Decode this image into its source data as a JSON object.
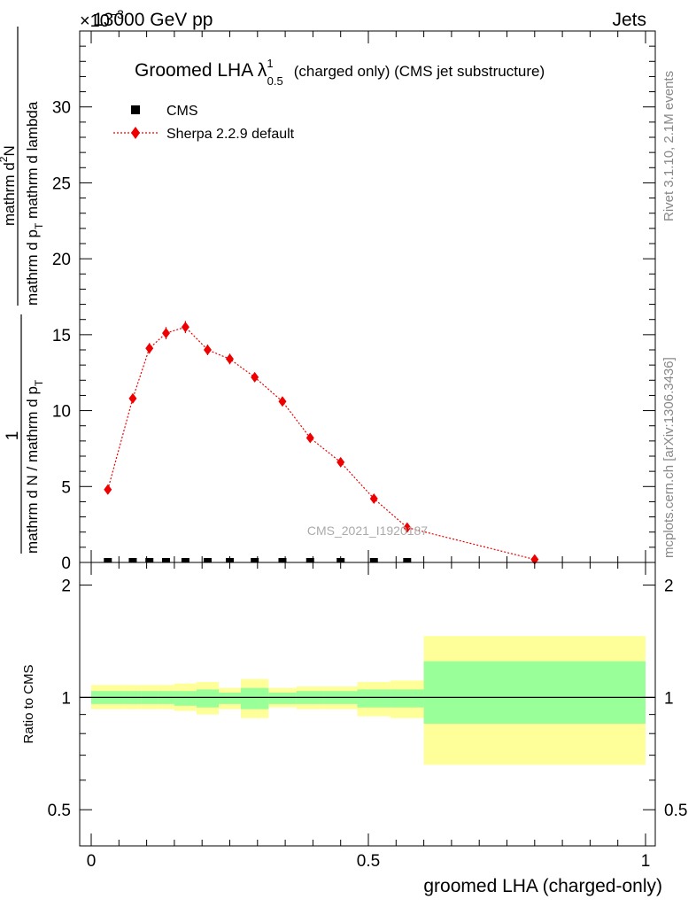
{
  "header": {
    "left": "13000 GeV pp",
    "right": "Jets"
  },
  "side": {
    "rivet": "Rivet 3.1.10,  2.1M events",
    "mcplots": "mcplots.cern.ch [arXiv:1306.3436]"
  },
  "watermark": "CMS_2021_I1920187",
  "colors": {
    "sherpa": "#ee0000",
    "band_inner": "#99ff99",
    "band_outer": "#ffff99",
    "data": "#000000"
  },
  "chart_data": [
    {
      "type": "scatter",
      "title": {
        "main": "Groomed LHA",
        "symbol": "λ",
        "sup": "1",
        "sub": "0.5",
        "suffix": "(charged only) (CMS jet substructure)"
      },
      "exponent_label": "×10",
      "exponent_sup": "−3",
      "ylabel": {
        "prefix": "1",
        "den1": "mathrm d N / mathrm d p",
        "den1_sub": "T",
        "den2": "mathrm d p",
        "den2_sub": "T",
        "num": "mathrm d",
        "num_sup": "2",
        "num_tail": "N",
        "den3": "mathrm d lambda"
      },
      "ylim": [
        0,
        35
      ],
      "yticks": [
        0,
        5,
        10,
        15,
        20,
        25,
        30
      ],
      "xlim": [
        0,
        1
      ],
      "legend": [
        {
          "label": "CMS",
          "marker": "square"
        },
        {
          "label": "Sherpa 2.2.9 default",
          "marker": "diamond-dotted-line"
        }
      ],
      "series": [
        {
          "name": "CMS",
          "x": [
            0.03,
            0.075,
            0.105,
            0.135,
            0.17,
            0.21,
            0.25,
            0.295,
            0.345,
            0.395,
            0.45,
            0.51,
            0.57
          ],
          "y": [
            0,
            0,
            0,
            0,
            0,
            0,
            0,
            0,
            0,
            0,
            0,
            0,
            0
          ]
        },
        {
          "name": "Sherpa 2.2.9 default",
          "x": [
            0.03,
            0.075,
            0.105,
            0.135,
            0.17,
            0.21,
            0.25,
            0.295,
            0.345,
            0.395,
            0.45,
            0.51,
            0.57,
            0.8
          ],
          "y": [
            4.8,
            10.8,
            14.1,
            15.1,
            15.5,
            14.0,
            13.4,
            12.2,
            10.6,
            8.2,
            6.6,
            4.2,
            2.3,
            0.2
          ],
          "yerr": [
            0.25,
            0.3,
            0.35,
            0.4,
            0.4,
            0.35,
            0.35,
            0.3,
            0.25,
            0.25,
            0.2,
            0.2,
            0.15,
            0.05
          ]
        }
      ]
    },
    {
      "type": "area",
      "ylabel": "Ratio to CMS",
      "xlabel": "groomed LHA (charged-only)",
      "ylim": [
        0.4,
        2.3
      ],
      "yticks": [
        0.5,
        1,
        2
      ],
      "ytick_labels": [
        "0.5",
        "1",
        "2"
      ],
      "xlim": [
        0,
        1
      ],
      "xticks": [
        0,
        0.5,
        1
      ],
      "xtick_labels": [
        "0",
        "0.5",
        "1"
      ],
      "reference_line": 1,
      "bins": [
        {
          "x0": 0.0,
          "x1": 0.06,
          "in_lo": 0.96,
          "in_hi": 1.04,
          "out_lo": 0.93,
          "out_hi": 1.08
        },
        {
          "x0": 0.06,
          "x1": 0.09,
          "in_lo": 0.96,
          "in_hi": 1.04,
          "out_lo": 0.93,
          "out_hi": 1.08
        },
        {
          "x0": 0.09,
          "x1": 0.12,
          "in_lo": 0.96,
          "in_hi": 1.04,
          "out_lo": 0.93,
          "out_hi": 1.08
        },
        {
          "x0": 0.12,
          "x1": 0.15,
          "in_lo": 0.96,
          "in_hi": 1.04,
          "out_lo": 0.93,
          "out_hi": 1.08
        },
        {
          "x0": 0.15,
          "x1": 0.19,
          "in_lo": 0.95,
          "in_hi": 1.04,
          "out_lo": 0.92,
          "out_hi": 1.09
        },
        {
          "x0": 0.19,
          "x1": 0.23,
          "in_lo": 0.94,
          "in_hi": 1.05,
          "out_lo": 0.9,
          "out_hi": 1.1
        },
        {
          "x0": 0.23,
          "x1": 0.27,
          "in_lo": 0.96,
          "in_hi": 1.03,
          "out_lo": 0.93,
          "out_hi": 1.06
        },
        {
          "x0": 0.27,
          "x1": 0.32,
          "in_lo": 0.93,
          "in_hi": 1.06,
          "out_lo": 0.88,
          "out_hi": 1.12
        },
        {
          "x0": 0.32,
          "x1": 0.37,
          "in_lo": 0.96,
          "in_hi": 1.03,
          "out_lo": 0.94,
          "out_hi": 1.06
        },
        {
          "x0": 0.37,
          "x1": 0.42,
          "in_lo": 0.96,
          "in_hi": 1.04,
          "out_lo": 0.93,
          "out_hi": 1.07
        },
        {
          "x0": 0.42,
          "x1": 0.48,
          "in_lo": 0.96,
          "in_hi": 1.04,
          "out_lo": 0.93,
          "out_hi": 1.07
        },
        {
          "x0": 0.48,
          "x1": 0.54,
          "in_lo": 0.94,
          "in_hi": 1.05,
          "out_lo": 0.89,
          "out_hi": 1.1
        },
        {
          "x0": 0.54,
          "x1": 0.6,
          "in_lo": 0.94,
          "in_hi": 1.05,
          "out_lo": 0.88,
          "out_hi": 1.11
        },
        {
          "x0": 0.6,
          "x1": 1.0,
          "in_lo": 0.85,
          "in_hi": 1.25,
          "out_lo": 0.66,
          "out_hi": 1.46
        }
      ]
    }
  ]
}
